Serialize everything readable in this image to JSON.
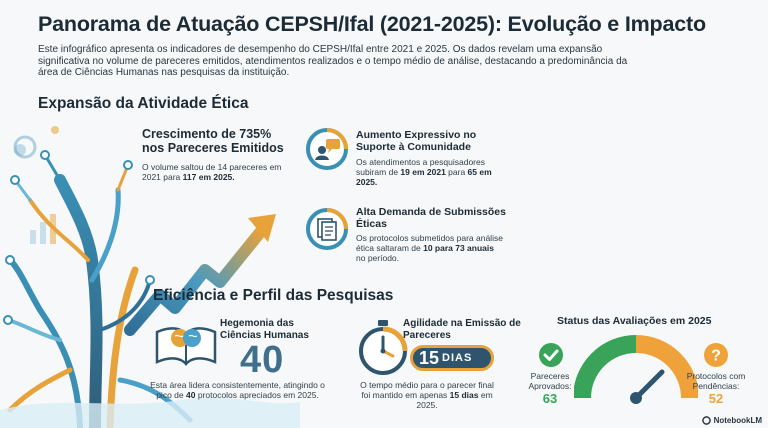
{
  "title": "Panorama de Atuação CEPSH/Ifal (2021-2025): Evolução e Impacto",
  "intro": "Este infográfico apresenta os indicadores de desempenho do CEPSH/Ifal entre 2021 e 2025. Os dados revelam uma expansão significativa no volume de pareceres emitidos, atendimentos realizados e o tempo médio de análise, destacando a predominância da área de Ciências Humanas nas pesquisas da instituição.",
  "section1": {
    "heading": "Expansão da Atividade Ética",
    "growth": {
      "heading": "Crescimento de 735% nos Pareceres Emitidos",
      "text_a": "O volume saltou de 14 pareceres em 2021 para ",
      "text_b": "117 em 2025."
    },
    "support": {
      "heading": "Aumento Expressivo no Suporte à Comunidade",
      "text_a": "Os atendimentos a pesquisadores subiram de ",
      "text_b": "19 em 2021",
      "text_c": " para ",
      "text_d": "65 em 2025."
    },
    "demand": {
      "heading": "Alta Demanda de Submissões Éticas",
      "text_a": "Os protocolos submetidos para análise ética saltaram de ",
      "text_b": "10 para 73 anuais",
      "text_c": " no período."
    }
  },
  "section2": {
    "heading": "Eficiência e Perfil das Pesquisas",
    "humanities": {
      "heading": "Hegemonia das Ciências Humanas",
      "big": "40",
      "text_a": "Esta área lidera consistentemente, atingindo o pico de ",
      "text_b": "40",
      "text_c": " protocolos apreciados em 2025."
    },
    "agility": {
      "heading": "Agilidade na Emissão de Pareceres",
      "badge_num": "15",
      "badge_unit": "DIAS",
      "text_a": "O tempo médio para o parecer final foi mantido em apenas ",
      "text_b": "15 dias",
      "text_c": " em 2025."
    },
    "status": {
      "heading": "Status das Avaliações em 2025",
      "approved_label": "Pareceres Aprovados:",
      "approved_value": "63",
      "pending_label": "Protocolos com Pendências:",
      "pending_value": "52",
      "approved_color": "#3aa35a",
      "pending_color": "#f0a23a"
    }
  },
  "brand": "NotebookLM"
}
